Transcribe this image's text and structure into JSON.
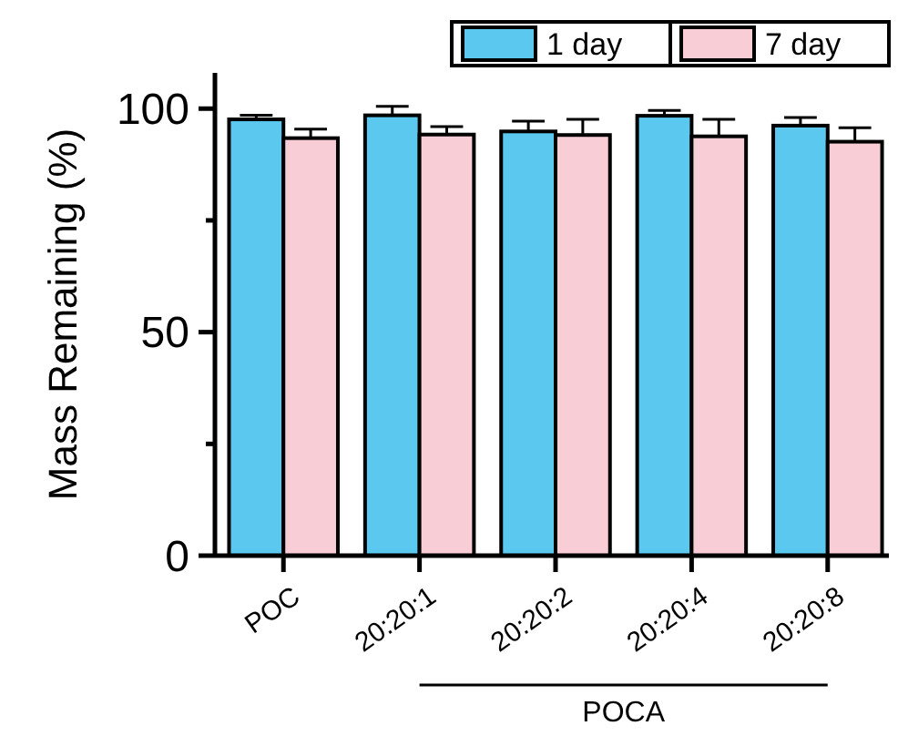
{
  "chart_data": {
    "type": "bar",
    "ylabel": "Mass Remaining (%)",
    "categories": [
      "POC",
      "20:20:1",
      "20:20:2",
      "20:20:4",
      "20:20:8"
    ],
    "series": [
      {
        "name": "1 day",
        "color": "#5bc8ef",
        "values": [
          97.6,
          98.5,
          94.9,
          98.4,
          96.2
        ],
        "errors": [
          0.9,
          2.0,
          2.3,
          1.2,
          1.8
        ]
      },
      {
        "name": "7 day",
        "color": "#f9cdd6",
        "values": [
          93.4,
          94.2,
          94.1,
          93.8,
          92.6
        ],
        "errors": [
          2.0,
          1.8,
          3.5,
          3.8,
          3.1
        ]
      }
    ],
    "ylim": [
      0,
      108
    ],
    "yticks": [
      0,
      {
        "value": 25,
        "label": null
      },
      50,
      {
        "value": 75,
        "label": null
      },
      100
    ],
    "annotations": [
      "POCA"
    ],
    "legend": "top right",
    "grid": false
  }
}
